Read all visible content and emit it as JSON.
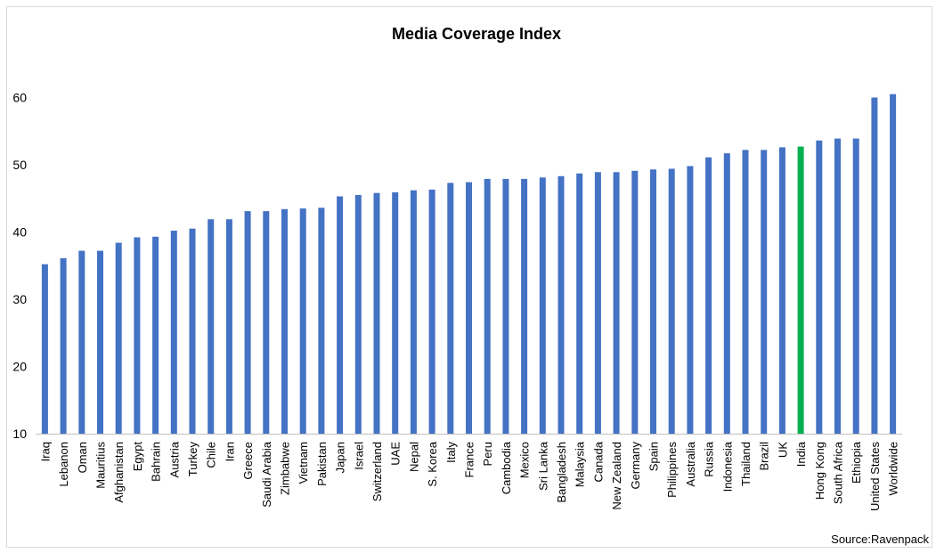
{
  "chart_data": {
    "type": "bar",
    "title": "Media Coverage Index",
    "source": "Source:Ravenpack",
    "ylim": [
      10,
      65
    ],
    "yticks": [
      10,
      20,
      30,
      40,
      50,
      60
    ],
    "grid": false,
    "colors": {
      "default": "#4472c4",
      "highlight": "#00b050"
    },
    "highlight": "India",
    "categories": [
      "Iraq",
      "Lebanon",
      "Oman",
      "Mauritius",
      "Afghanistan",
      "Egypt",
      "Bahrain",
      "Austria",
      "Turkey",
      "Chile",
      "Iran",
      "Greece",
      "Saudi Arabia",
      "Zimbabwe",
      "Vietnam",
      "Pakistan",
      "Japan",
      "Israel",
      "Switzerland",
      "UAE",
      "Nepal",
      "S. Korea",
      "Italy",
      "France",
      "Peru",
      "Cambodia",
      "Mexico",
      "Sri Lanka",
      "Bangladesh",
      "Malaysia",
      "Canada",
      "New Zealand",
      "Germany",
      "Spain",
      "Philippines",
      "Australia",
      "Russia",
      "Indonesia",
      "Thailand",
      "Brazil",
      "UK",
      "India",
      "Hong Kong",
      "South Africa",
      "Ethiopia",
      "United States",
      "Worldwide"
    ],
    "values": [
      35.2,
      36.1,
      37.2,
      37.2,
      38.4,
      39.2,
      39.3,
      40.2,
      40.5,
      41.9,
      41.9,
      43.1,
      43.1,
      43.4,
      43.5,
      43.6,
      45.3,
      45.5,
      45.8,
      45.9,
      46.2,
      46.3,
      47.3,
      47.4,
      47.9,
      47.9,
      47.9,
      48.1,
      48.3,
      48.7,
      48.9,
      48.9,
      49.1,
      49.3,
      49.4,
      49.8,
      51.1,
      51.7,
      52.2,
      52.2,
      52.6,
      52.7,
      53.6,
      53.9,
      53.9,
      60.0,
      60.5
    ]
  }
}
